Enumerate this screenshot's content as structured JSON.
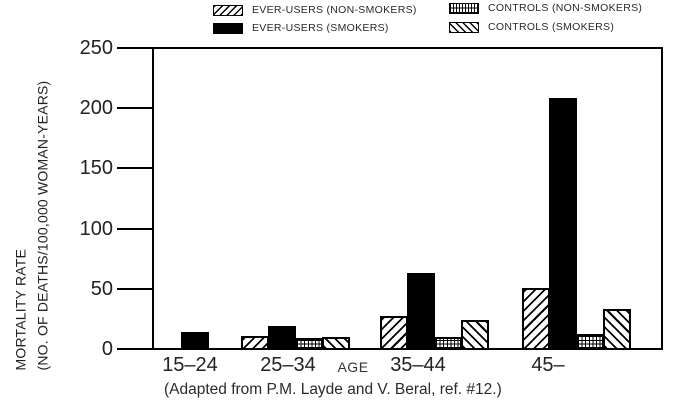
{
  "figure": {
    "caption": "(Adapted from P.M. Layde and V. Beral, ref. #12.)"
  },
  "axes": {
    "y_title_line1": "MORTALITY RATE",
    "y_title_line2": "(NO. OF DEATHS/100,000 WOMAN-YEARS)",
    "x_title": "AGE"
  },
  "legend": {
    "items": [
      {
        "label": "EVER-USERS (NON-SMOKERS)",
        "pattern": "diagonal-forward"
      },
      {
        "label": "CONTROLS (NON-SMOKERS)",
        "pattern": "grid"
      },
      {
        "label": "EVER-USERS (SMOKERS)",
        "pattern": "solid-black"
      },
      {
        "label": "CONTROLS (SMOKERS)",
        "pattern": "diagonal-back"
      }
    ]
  },
  "chart_data": {
    "type": "bar",
    "title": "",
    "categories": [
      "15–24",
      "25–34",
      "35–44",
      "45–"
    ],
    "series": [
      {
        "name": "EVER-USERS (NON-SMOKERS)",
        "pattern": "diagonal-forward",
        "values": [
          0,
          10,
          27,
          50
        ]
      },
      {
        "name": "EVER-USERS (SMOKERS)",
        "pattern": "solid-black",
        "values": [
          13,
          18,
          63,
          209
        ]
      },
      {
        "name": "CONTROLS (NON-SMOKERS)",
        "pattern": "grid",
        "values": [
          0,
          8,
          9,
          12
        ]
      },
      {
        "name": "CONTROLS (SMOKERS)",
        "pattern": "diagonal-back",
        "values": [
          0,
          9,
          23,
          33
        ]
      }
    ],
    "xlabel": "AGE",
    "ylabel": "MORTALITY RATE (NO. OF DEATHS/100,000 WOMAN-YEARS)",
    "ylim": [
      0,
      250
    ],
    "yticks": [
      0,
      50,
      100,
      150,
      200,
      250
    ],
    "legend_position": "top",
    "grid": false
  },
  "colors": {
    "ink": "#000000",
    "background": "#ffffff",
    "text": "#222222"
  }
}
